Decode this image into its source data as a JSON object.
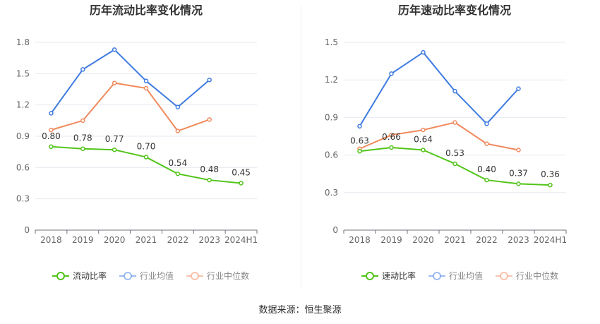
{
  "source_text": "数据来源：恒生聚源",
  "chart_data": [
    {
      "type": "line",
      "title": "历年流动比率变化情况",
      "categories": [
        "2018",
        "2019",
        "2020",
        "2021",
        "2022",
        "2023",
        "2024H1"
      ],
      "ylim": [
        0,
        1.8
      ],
      "yticks": [
        0,
        0.3,
        0.6,
        0.9,
        1.2,
        1.5,
        1.8
      ],
      "ytick_labels": [
        "0",
        "0.3",
        "0.6",
        "0.9",
        "1.2",
        "1.5",
        "1.8"
      ],
      "grid": true,
      "legend_position": "bottom",
      "series": [
        {
          "name": "流动比率",
          "color": "#52c41a",
          "values": [
            0.8,
            0.78,
            0.77,
            0.7,
            0.54,
            0.48,
            0.45
          ],
          "labels": [
            "0.80",
            "0.78",
            "0.77",
            "0.70",
            "0.54",
            "0.48",
            "0.45"
          ]
        },
        {
          "name": "行业均值",
          "color": "#3f7be0",
          "values": [
            1.12,
            1.54,
            1.73,
            1.43,
            1.18,
            1.44,
            null
          ]
        },
        {
          "name": "行业中位数",
          "color": "#f08a5d",
          "values": [
            0.96,
            1.05,
            1.41,
            1.36,
            0.95,
            1.06,
            null
          ]
        }
      ]
    },
    {
      "type": "line",
      "title": "历年速动比率变化情况",
      "categories": [
        "2018",
        "2019",
        "2020",
        "2021",
        "2022",
        "2023",
        "2024H1"
      ],
      "ylim": [
        0,
        1.5
      ],
      "yticks": [
        0,
        0.3,
        0.6,
        0.9,
        1.2,
        1.5
      ],
      "ytick_labels": [
        "0",
        "0.3",
        "0.6",
        "0.9",
        "1.2",
        "1.5"
      ],
      "grid": true,
      "legend_position": "bottom",
      "series": [
        {
          "name": "速动比率",
          "color": "#52c41a",
          "values": [
            0.63,
            0.66,
            0.64,
            0.53,
            0.4,
            0.37,
            0.36
          ],
          "labels": [
            "0.63",
            "0.66",
            "0.64",
            "0.53",
            "0.40",
            "0.37",
            "0.36"
          ]
        },
        {
          "name": "行业均值",
          "color": "#3f7be0",
          "values": [
            0.83,
            1.25,
            1.42,
            1.11,
            0.85,
            1.13,
            null
          ]
        },
        {
          "name": "行业中位数",
          "color": "#f08a5d",
          "values": [
            0.65,
            0.76,
            0.8,
            0.86,
            0.69,
            0.64,
            null
          ]
        }
      ]
    }
  ]
}
